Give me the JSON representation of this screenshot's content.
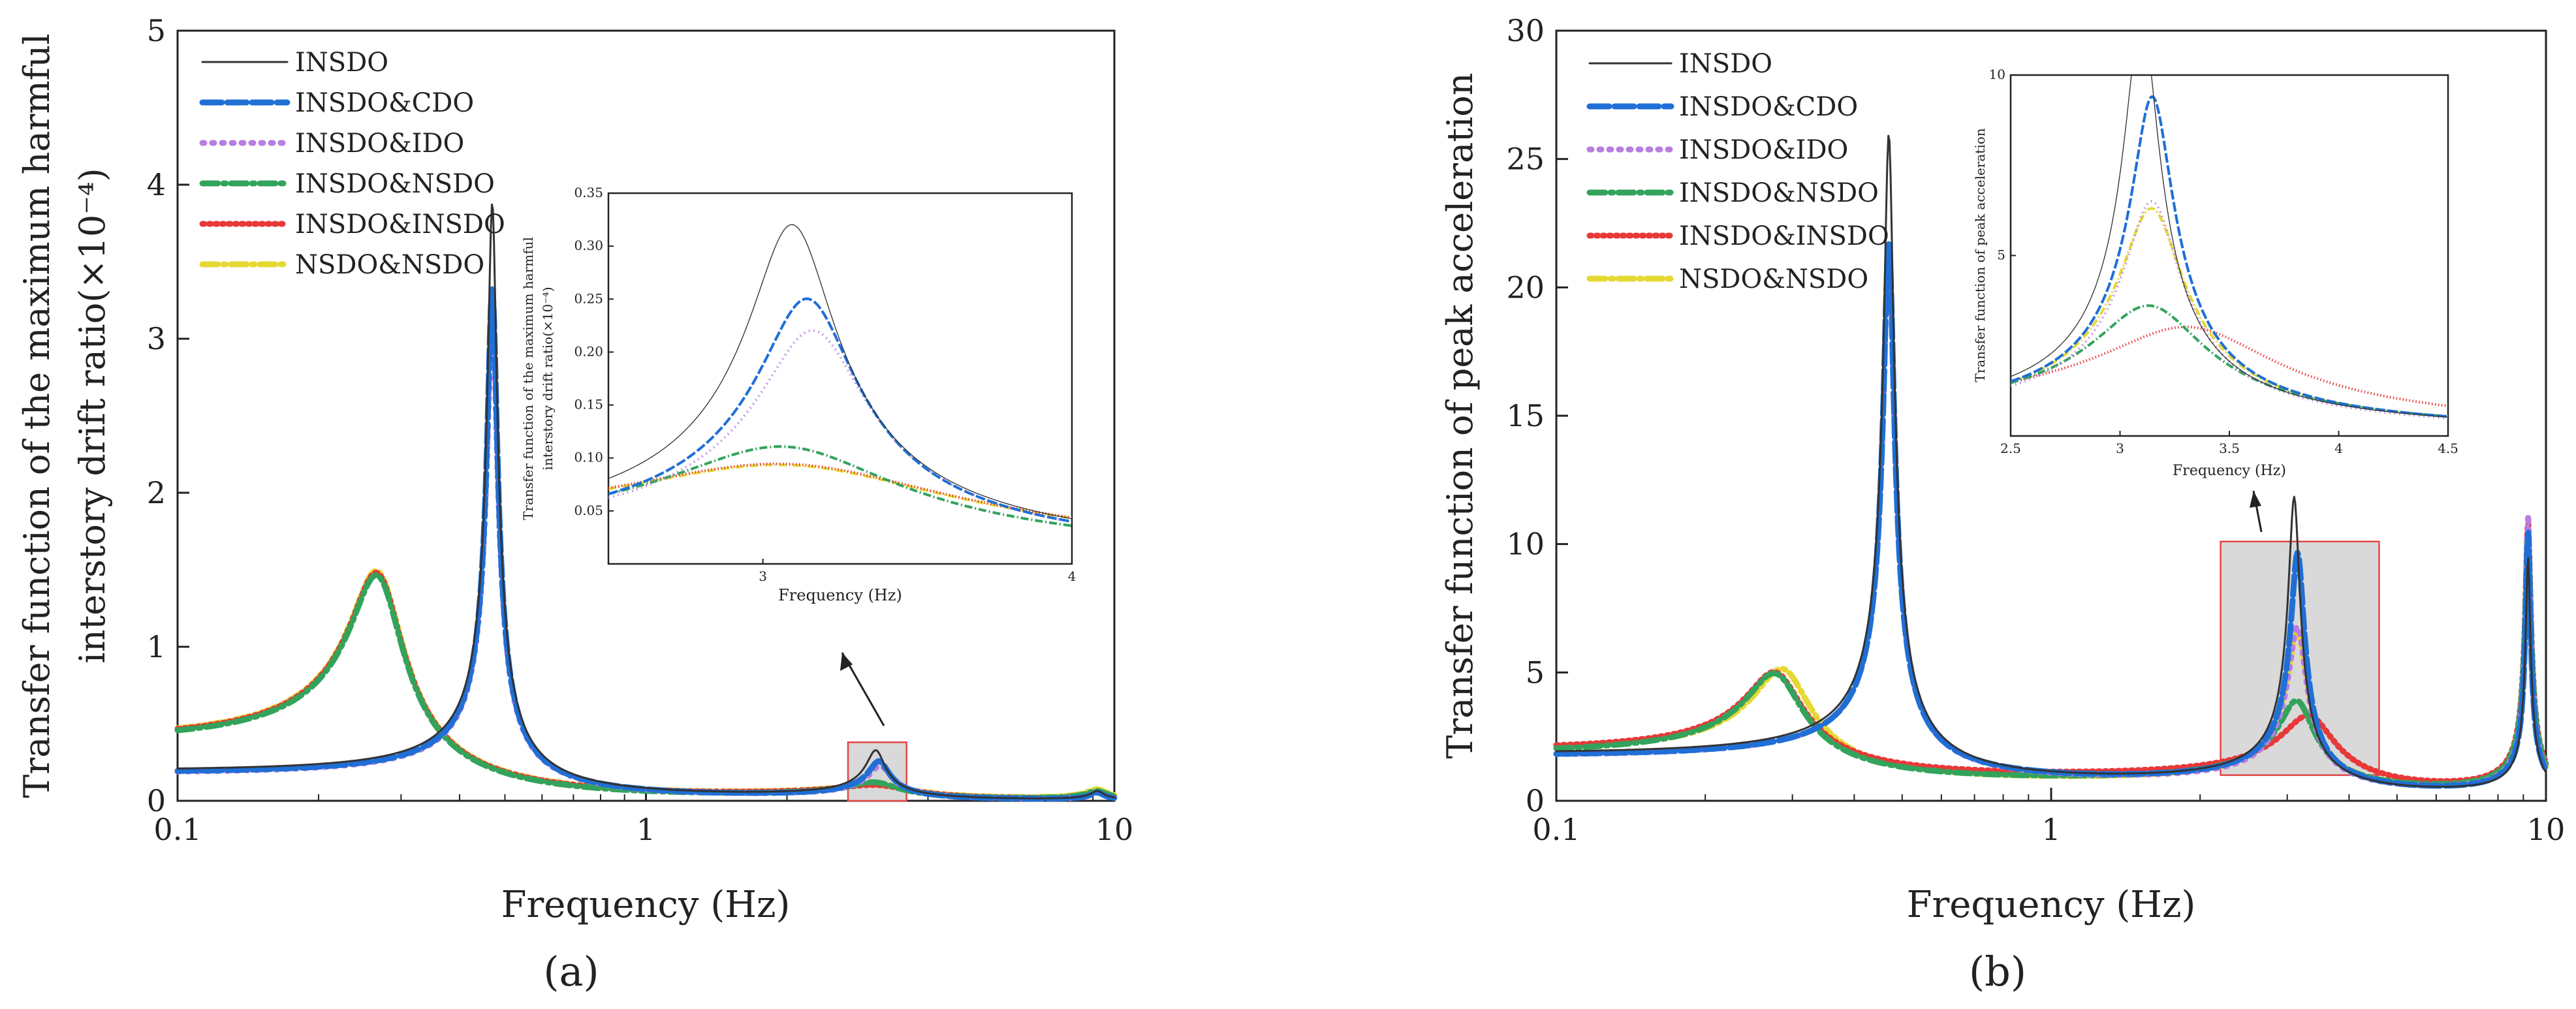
{
  "series_styles": [
    {
      "name": "INSDO",
      "color": "#333333",
      "dash": "none",
      "width_key": "thin"
    },
    {
      "name": "INSDO&CDO",
      "color": "#1f6fd6",
      "dash": "long",
      "width_key": "thick"
    },
    {
      "name": "INSDO&IDO",
      "color": "#b77ee0",
      "dash": "dot",
      "width_key": "thick"
    },
    {
      "name": "INSDO&NSDO",
      "color": "#33a35c",
      "dash": "dashdot",
      "width_key": "thick"
    },
    {
      "name": "INSDO&INSDO",
      "color": "#e83838",
      "dash": "fine",
      "width_key": "thick"
    },
    {
      "name": "NSDO&NSDO",
      "color": "#e6d833",
      "dash": "dashdot",
      "width_key": "thick"
    }
  ],
  "chart_data": [
    {
      "id": "a",
      "type": "line",
      "panel_label": "(a)",
      "xscale": "log",
      "xlim": [
        0.1,
        10
      ],
      "ylim": [
        0,
        5
      ],
      "xticks": [
        0.1,
        1,
        10
      ],
      "xtick_labels": [
        "0.1",
        "1",
        "10"
      ],
      "yticks": [
        0,
        1,
        2,
        3,
        4,
        5
      ],
      "ytick_labels": [
        "0",
        "1",
        "2",
        "3",
        "4",
        "5"
      ],
      "xlabel": "Frequency (Hz)",
      "ylabel_line1": "Transfer function of the maximum harmful",
      "ylabel_line2": "interstory drift ratio(×10⁻⁴)",
      "legend_position": "top-left",
      "highlight_box": {
        "x_range": [
          2.7,
          3.6
        ],
        "y_range": [
          0,
          0.38
        ]
      },
      "series": [
        {
          "name": "INSDO",
          "peaks": [
            {
              "f": 0.47,
              "a": 3.85,
              "z": 0.022
            },
            {
              "f": 3.1,
              "a": 0.32,
              "z": 0.045
            },
            {
              "f": 9.2,
              "a": 0.06,
              "z": 0.03
            }
          ]
        },
        {
          "name": "INSDO&CDO",
          "peaks": [
            {
              "f": 0.47,
              "a": 3.3,
              "z": 0.024
            },
            {
              "f": 3.15,
              "a": 0.25,
              "z": 0.05
            },
            {
              "f": 9.2,
              "a": 0.05,
              "z": 0.03
            }
          ]
        },
        {
          "name": "INSDO&IDO",
          "peaks": [
            {
              "f": 0.47,
              "a": 3.1,
              "z": 0.025
            },
            {
              "f": 3.17,
              "a": 0.22,
              "z": 0.055
            },
            {
              "f": 9.2,
              "a": 0.05,
              "z": 0.03
            }
          ]
        },
        {
          "name": "INSDO&NSDO",
          "peaks": [
            {
              "f": 0.27,
              "a": 1.42,
              "z": 0.13
            },
            {
              "f": 3.1,
              "a": 0.11,
              "z": 0.12
            },
            {
              "f": 9.2,
              "a": 0.06,
              "z": 0.05
            }
          ]
        },
        {
          "name": "INSDO&INSDO",
          "peaks": [
            {
              "f": 0.27,
              "a": 1.43,
              "z": 0.13
            },
            {
              "f": 3.15,
              "a": 0.093,
              "z": 0.18
            },
            {
              "f": 9.2,
              "a": 0.05,
              "z": 0.05
            }
          ]
        },
        {
          "name": "NSDO&NSDO",
          "peaks": [
            {
              "f": 0.27,
              "a": 1.44,
              "z": 0.13
            },
            {
              "f": 3.15,
              "a": 0.092,
              "z": 0.18
            },
            {
              "f": 9.2,
              "a": 0.07,
              "z": 0.05
            }
          ]
        }
      ],
      "inset": {
        "xscale": "linear",
        "xlim": [
          2.5,
          4.0
        ],
        "ylim": [
          0,
          0.35
        ],
        "xticks": [
          3,
          4
        ],
        "xtick_labels": [
          "3",
          "4"
        ],
        "yticks": [
          0.05,
          0.1,
          0.15,
          0.2,
          0.25,
          0.3,
          0.35
        ],
        "ytick_labels": [
          "0.05",
          "0.10",
          "0.15",
          "0.20",
          "0.25",
          "0.30",
          "0.35"
        ],
        "xlabel": "Frequency (Hz)",
        "ylabel_line1": "Transfer function of the maximum harmful",
        "ylabel_line2": "interstory drift ratio(×10⁻⁴)",
        "peak_index": 1
      }
    },
    {
      "id": "b",
      "type": "line",
      "panel_label": "(b)",
      "xscale": "log",
      "xlim": [
        0.1,
        10
      ],
      "ylim": [
        0,
        30
      ],
      "xticks": [
        0.1,
        1,
        10
      ],
      "xtick_labels": [
        "0.1",
        "1",
        "10"
      ],
      "yticks": [
        0,
        5,
        10,
        15,
        20,
        25,
        30
      ],
      "ytick_labels": [
        "0",
        "5",
        "10",
        "15",
        "20",
        "25",
        "30"
      ],
      "xlabel": "Frequency (Hz)",
      "ylabel_line1": "Transfer function of peak acceleration",
      "ylabel_line2": "",
      "legend_position": "top-left",
      "highlight_box": {
        "x_range": [
          2.2,
          4.6
        ],
        "y_range": [
          1.0,
          10.1
        ]
      },
      "series": [
        {
          "name": "INSDO",
          "peaks": [
            {
              "f": 0.47,
              "a": 25.2,
              "z": 0.022
            },
            {
              "f": 3.1,
              "a": 11.6,
              "z": 0.025
            },
            {
              "f": 9.2,
              "a": 9.5,
              "z": 0.01
            }
          ]
        },
        {
          "name": "INSDO&CDO",
          "peaks": [
            {
              "f": 0.47,
              "a": 21.0,
              "z": 0.024
            },
            {
              "f": 3.15,
              "a": 9.4,
              "z": 0.03
            },
            {
              "f": 9.2,
              "a": 10.5,
              "z": 0.01
            }
          ]
        },
        {
          "name": "INSDO&IDO",
          "peaks": [
            {
              "f": 0.47,
              "a": 20.5,
              "z": 0.025
            },
            {
              "f": 3.15,
              "a": 6.5,
              "z": 0.04
            },
            {
              "f": 9.2,
              "a": 11.2,
              "z": 0.01
            }
          ]
        },
        {
          "name": "INSDO&NSDO",
          "peaks": [
            {
              "f": 0.28,
              "a": 4.1,
              "z": 0.13
            },
            {
              "f": 3.15,
              "a": 3.6,
              "z": 0.08
            },
            {
              "f": 9.2,
              "a": 10.5,
              "z": 0.012
            }
          ]
        },
        {
          "name": "INSDO&INSDO",
          "peaks": [
            {
              "f": 0.28,
              "a": 4.0,
              "z": 0.13
            },
            {
              "f": 3.35,
              "a": 3.0,
              "z": 0.12
            },
            {
              "f": 9.2,
              "a": 10.8,
              "z": 0.012
            }
          ]
        },
        {
          "name": "NSDO&NSDO",
          "peaks": [
            {
              "f": 0.29,
              "a": 4.3,
              "z": 0.13
            },
            {
              "f": 3.15,
              "a": 6.3,
              "z": 0.045
            },
            {
              "f": 9.2,
              "a": 9.8,
              "z": 0.012
            }
          ]
        }
      ],
      "inset": {
        "xscale": "linear",
        "xlim": [
          2.5,
          4.5
        ],
        "ylim": [
          0,
          10
        ],
        "xticks": [
          2.5,
          3,
          3.5,
          4,
          4.5
        ],
        "xtick_labels": [
          "2.5",
          "3",
          "3.5",
          "4",
          "4.5"
        ],
        "yticks": [
          5,
          10
        ],
        "ytick_labels": [
          "5",
          "10"
        ],
        "xlabel": "Frequency (Hz)",
        "ylabel_line1": "Transfer function of peak acceleration",
        "ylabel_line2": "",
        "peak_index": 1
      }
    }
  ]
}
